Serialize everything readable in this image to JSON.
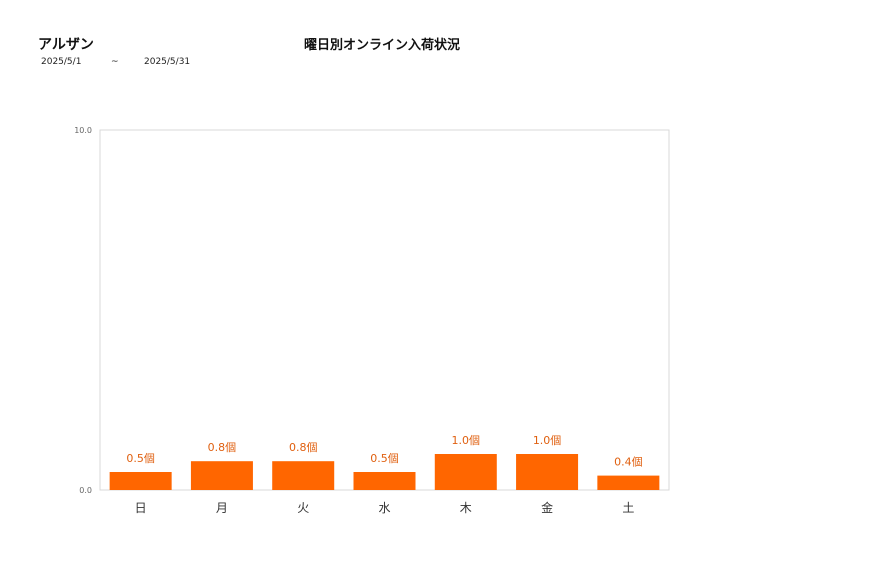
{
  "header": {
    "store_name": "アルザン",
    "date_start": "2025/5/1",
    "date_separator": "~",
    "date_end": "2025/5/31"
  },
  "chart_data": {
    "type": "bar",
    "title": "曜日別オンライン入荷状況",
    "categories": [
      "日",
      "月",
      "火",
      "水",
      "木",
      "金",
      "土"
    ],
    "values": [
      0.5,
      0.8,
      0.8,
      0.5,
      1.0,
      1.0,
      0.4
    ],
    "value_labels": [
      "0.5個",
      "0.8個",
      "0.8個",
      "0.5個",
      "1.0個",
      "1.0個",
      "0.4個"
    ],
    "y_ticks": [
      "0.0",
      "10.0"
    ],
    "ylim": [
      0,
      10
    ],
    "xlabel": "",
    "ylabel": "",
    "grid": false,
    "legend": "none",
    "bar_color": "#ff6600",
    "label_color": "#e06010"
  }
}
